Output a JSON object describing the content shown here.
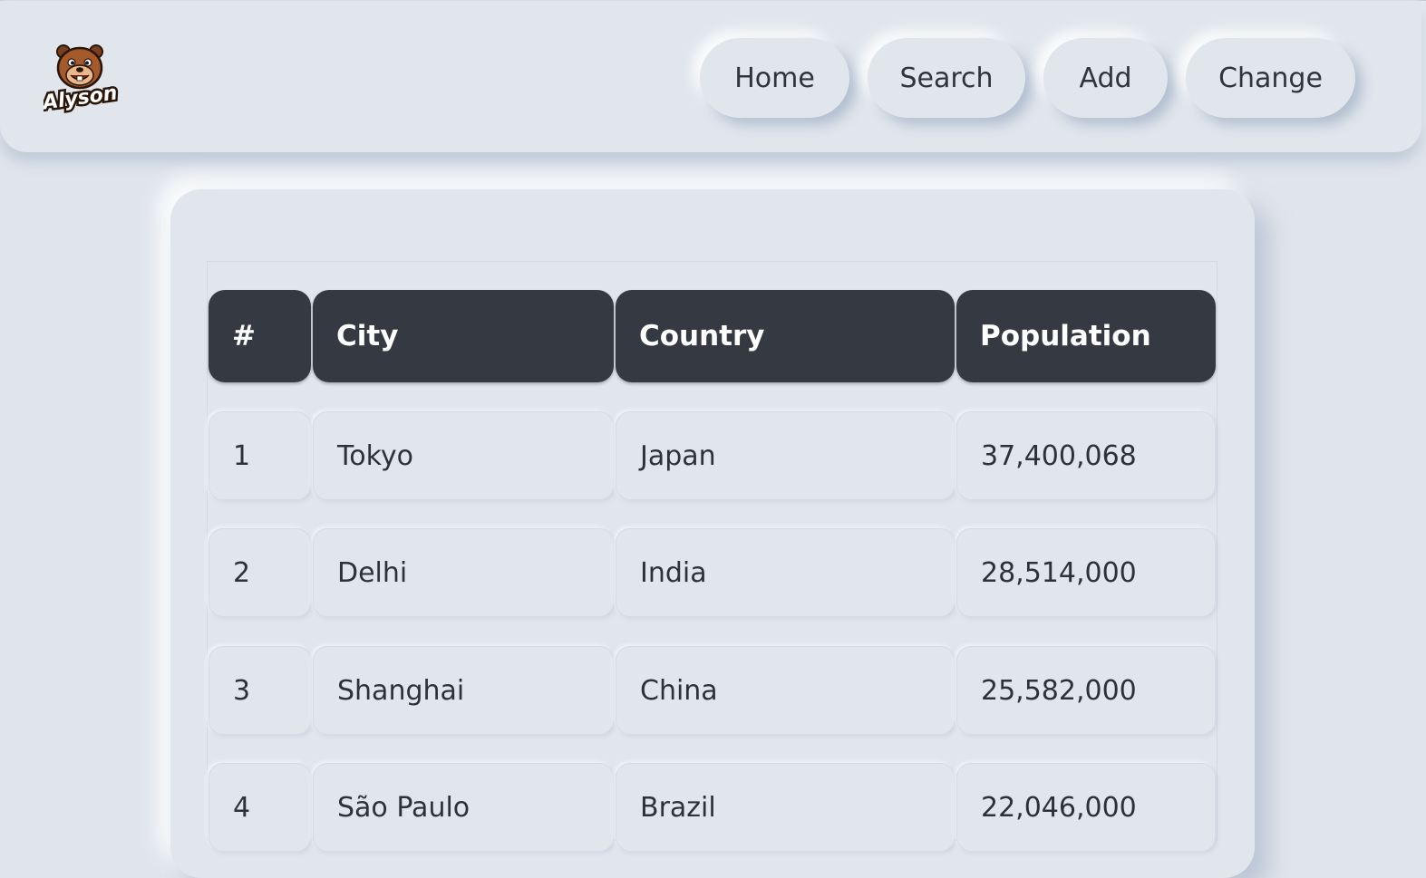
{
  "logo": {
    "text": "Alyson",
    "icon": "beaver-mascot-icon"
  },
  "nav": {
    "items": [
      {
        "label": "Home"
      },
      {
        "label": "Search"
      },
      {
        "label": "Add"
      },
      {
        "label": "Change"
      }
    ]
  },
  "table": {
    "headers": [
      "#",
      "City",
      "Country",
      "Population"
    ],
    "rows": [
      [
        "1",
        "Tokyo",
        "Japan",
        "37,400,068"
      ],
      [
        "2",
        "Delhi",
        "India",
        "28,514,000"
      ],
      [
        "3",
        "Shanghai",
        "China",
        "25,582,000"
      ],
      [
        "4",
        "São Paulo",
        "Brazil",
        "22,046,000"
      ]
    ]
  }
}
